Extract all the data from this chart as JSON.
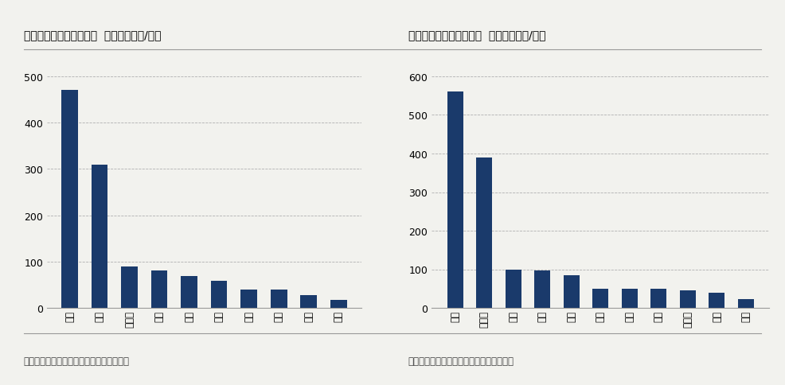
{
  "left_title": "图：电解铝指标输出地区  （单位：万吨/年）",
  "right_title": "图：电解铝指标输入地区  （单位：万吨/年）",
  "left_cats": [
    "山东",
    "云南",
    "内蒙古",
    "广西",
    "山西",
    "陕西",
    "贵州",
    "浙江",
    "河北",
    "新疆"
  ],
  "left_vals": [
    470,
    310,
    90,
    80,
    68,
    58,
    40,
    40,
    28,
    18
  ],
  "right_cats": [
    "云南",
    "内蒙古",
    "贵州",
    "辽宁",
    "四川",
    "山东",
    "水电",
    "山人",
    "赣鄂湘",
    "山苏",
    "新市"
  ],
  "right_vals": [
    560,
    390,
    100,
    96,
    85,
    50,
    50,
    50,
    45,
    40,
    22
  ],
  "bar_color": "#1a3a6b",
  "background_color": "#f2f2ee",
  "source_text": "数据来源：中国有色金属工业协会铝业分会",
  "left_ylim": [
    0,
    500
  ],
  "left_yticks": [
    0,
    100,
    200,
    300,
    400,
    500
  ],
  "right_ylim": [
    0,
    600
  ],
  "right_yticks": [
    0,
    100,
    200,
    300,
    400,
    500,
    600
  ]
}
